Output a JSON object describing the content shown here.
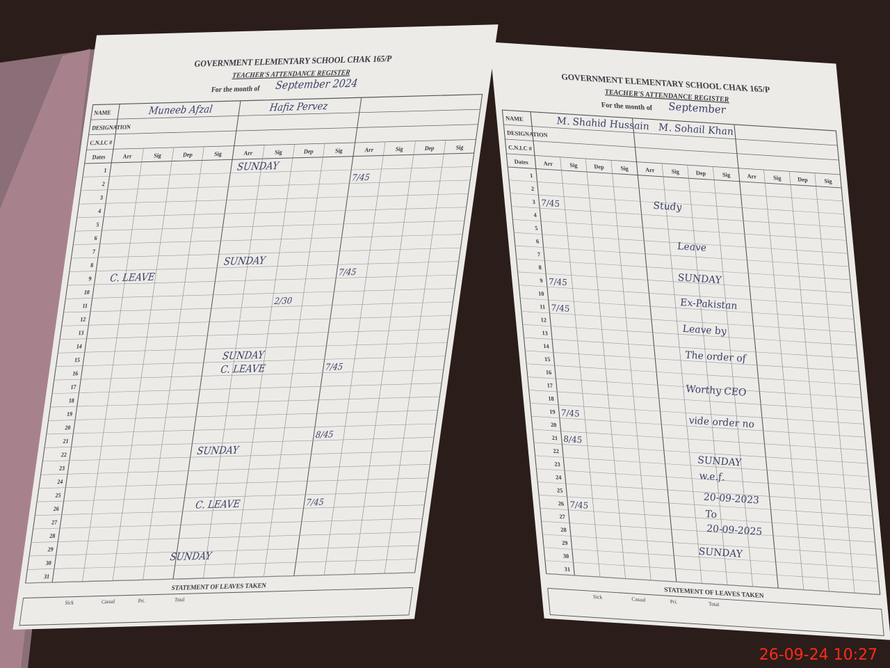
{
  "left_page": {
    "school": "GOVERNMENT ELEMENTARY SCHOOL CHAK 165/P",
    "title": "TEACHER'S ATTENDANCE REGISTER",
    "month_label": "For the month of",
    "month": "September 2024",
    "fields": [
      "NAME",
      "DESIGNATION",
      "C.N.I.C #"
    ],
    "teachers": [
      "Muneeb Afzal",
      "Hafiz Pervez"
    ],
    "columns": [
      "Dates",
      "Arr",
      "Sig",
      "Dep",
      "Sig",
      "Arr",
      "Sig",
      "Dep",
      "Sig",
      "Arr",
      "Sig",
      "Dep",
      "Sig"
    ],
    "dates": [
      1,
      2,
      3,
      4,
      5,
      6,
      7,
      8,
      9,
      10,
      11,
      12,
      13,
      14,
      15,
      16,
      17,
      18,
      19,
      20,
      21,
      22,
      23,
      24,
      25,
      26,
      27,
      28,
      29,
      30,
      31
    ],
    "notes": [
      "SUNDAY",
      "SUNDAY",
      "C. LEAVE",
      "SUNDAY",
      "C. LEAVE",
      "SUNDAY",
      "C. LEAVE",
      "SUNDAY"
    ],
    "entries": [
      "7/45",
      "7/45",
      "7/45",
      "8/45",
      "7/45",
      "2/30"
    ],
    "footer": "STATEMENT OF LEAVES TAKEN",
    "leave_columns": [
      "Sick",
      "Casual",
      "Pri.",
      "Total"
    ]
  },
  "right_page": {
    "school": "GOVERNMENT ELEMENTARY SCHOOL CHAK 165/P",
    "title": "TEACHER'S ATTENDANCE REGISTER",
    "month_label": "For the month of",
    "month": "September",
    "fields": [
      "NAME",
      "DESIGNATION",
      "C.N.I.C #"
    ],
    "teachers": [
      "M. Shahid Hussain",
      "M. Sohail Khan"
    ],
    "columns": [
      "Dates",
      "Arr",
      "Sig",
      "Dep",
      "Sig",
      "Arr",
      "Sig",
      "Dep",
      "Sig",
      "Arr",
      "Sig",
      "Dep",
      "Sig"
    ],
    "dates": [
      1,
      2,
      3,
      4,
      5,
      6,
      7,
      8,
      9,
      10,
      11,
      12,
      13,
      14,
      15,
      16,
      17,
      18,
      19,
      20,
      21,
      22,
      23,
      24,
      25,
      26,
      27,
      28,
      29,
      30,
      31
    ],
    "notes": [
      "Study",
      "Leave",
      "SUNDAY",
      "Ex-Pakistan",
      "Leave by",
      "The order of",
      "Worthy CEO",
      "vide order no",
      "SUNDAY",
      "w.e.f.",
      "20-09-2023",
      "To",
      "20-09-2025",
      "SUNDAY"
    ],
    "entries": [
      "7/45",
      "7/45",
      "7/45",
      "7/45",
      "8/45",
      "7/45"
    ],
    "footer": "STATEMENT OF LEAVES TAKEN",
    "leave_columns": [
      "Sick",
      "Casual",
      "Pri.",
      "Total"
    ]
  },
  "timestamp": "26-09-24 10:27"
}
